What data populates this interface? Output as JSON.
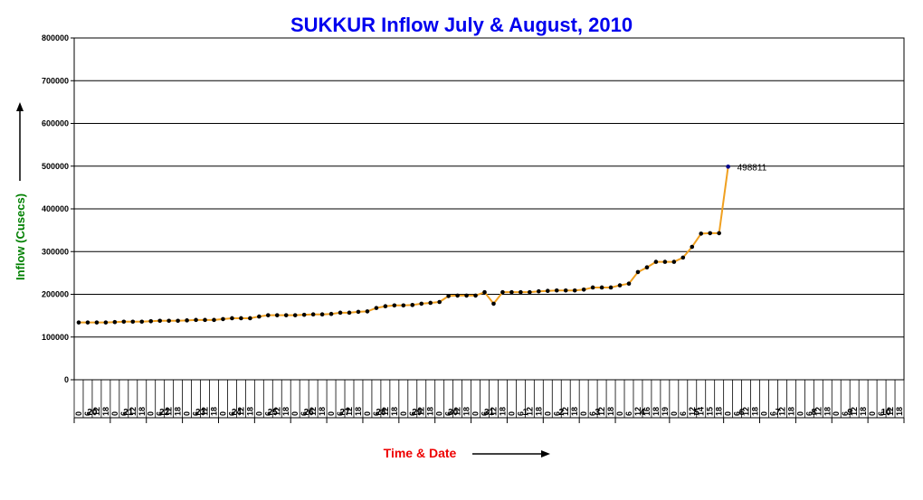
{
  "chart_data": {
    "type": "line",
    "title": "SUKKUR Inflow July & August, 2010",
    "ylabel": "Inflow (Cusecs)",
    "xlabel": "Time & Date",
    "ylim": [
      0,
      800000
    ],
    "y_ticks": [
      "0",
      "100000",
      "200000",
      "300000",
      "400000",
      "500000",
      "600000",
      "700000",
      "800000"
    ],
    "grid": true,
    "line_color": "#f0a020",
    "marker_color": "#000000",
    "last_marker_color": "#00008b",
    "days": [
      {
        "label": "20",
        "hours": [
          "0",
          "6",
          "12",
          "18"
        ]
      },
      {
        "label": "21",
        "hours": [
          "0",
          "6",
          "12",
          "18"
        ]
      },
      {
        "label": "22",
        "hours": [
          "0",
          "6",
          "12",
          "18"
        ]
      },
      {
        "label": "23",
        "hours": [
          "0",
          "6",
          "12",
          "18"
        ]
      },
      {
        "label": "24",
        "hours": [
          "0",
          "6",
          "12",
          "18"
        ]
      },
      {
        "label": "25",
        "hours": [
          "0",
          "6",
          "12",
          "18"
        ]
      },
      {
        "label": "26",
        "hours": [
          "0",
          "6",
          "12",
          "18"
        ]
      },
      {
        "label": "27",
        "hours": [
          "0",
          "6",
          "12",
          "18"
        ]
      },
      {
        "label": "28",
        "hours": [
          "0",
          "6",
          "12",
          "18"
        ]
      },
      {
        "label": "29",
        "hours": [
          "0",
          "6",
          "12",
          "18"
        ]
      },
      {
        "label": "30",
        "hours": [
          "0",
          "6",
          "12",
          "18"
        ]
      },
      {
        "label": "31",
        "hours": [
          "0",
          "6",
          "12",
          "18"
        ]
      },
      {
        "label": "1",
        "hours": [
          "0",
          "6",
          "12",
          "18"
        ]
      },
      {
        "label": "2",
        "hours": [
          "0",
          "6",
          "12",
          "18"
        ]
      },
      {
        "label": "3",
        "hours": [
          "0",
          "6",
          "12",
          "18"
        ]
      },
      {
        "label": "4",
        "hours": [
          "0",
          "6",
          "12",
          "16",
          "18",
          "19"
        ]
      },
      {
        "label": "5",
        "hours": [
          "0",
          "6",
          "12",
          "14",
          "15",
          "18"
        ]
      },
      {
        "label": "6",
        "hours": [
          "0",
          "6",
          "12",
          "18"
        ]
      },
      {
        "label": "7",
        "hours": [
          "0",
          "6",
          "12",
          "18"
        ]
      },
      {
        "label": "8",
        "hours": [
          "0",
          "6",
          "12",
          "18"
        ]
      },
      {
        "label": "9",
        "hours": [
          "0",
          "6",
          "12",
          "18"
        ]
      },
      {
        "label": "10",
        "hours": [
          "0",
          "6",
          "12",
          "18"
        ]
      }
    ],
    "values": [
      134000,
      134000,
      134000,
      134000,
      135000,
      136000,
      136000,
      136000,
      137000,
      138000,
      138000,
      138000,
      139000,
      140000,
      140000,
      140000,
      142000,
      144000,
      144000,
      144000,
      148000,
      151000,
      151000,
      151000,
      151000,
      152000,
      153000,
      153000,
      154000,
      157000,
      157000,
      159000,
      160000,
      168000,
      172000,
      174000,
      174000,
      175000,
      178000,
      180000,
      182000,
      196000,
      197000,
      197000,
      197000,
      205000,
      178000,
      205000,
      205000,
      205000,
      205000,
      207000,
      208000,
      209000,
      209000,
      209000,
      211000,
      216000,
      216000,
      216000,
      221000,
      225000,
      252000,
      263000,
      276000,
      276000,
      276000,
      286000,
      311000,
      342000,
      343000,
      343000,
      498811
    ],
    "annotations": [
      {
        "text": "498811"
      }
    ]
  }
}
